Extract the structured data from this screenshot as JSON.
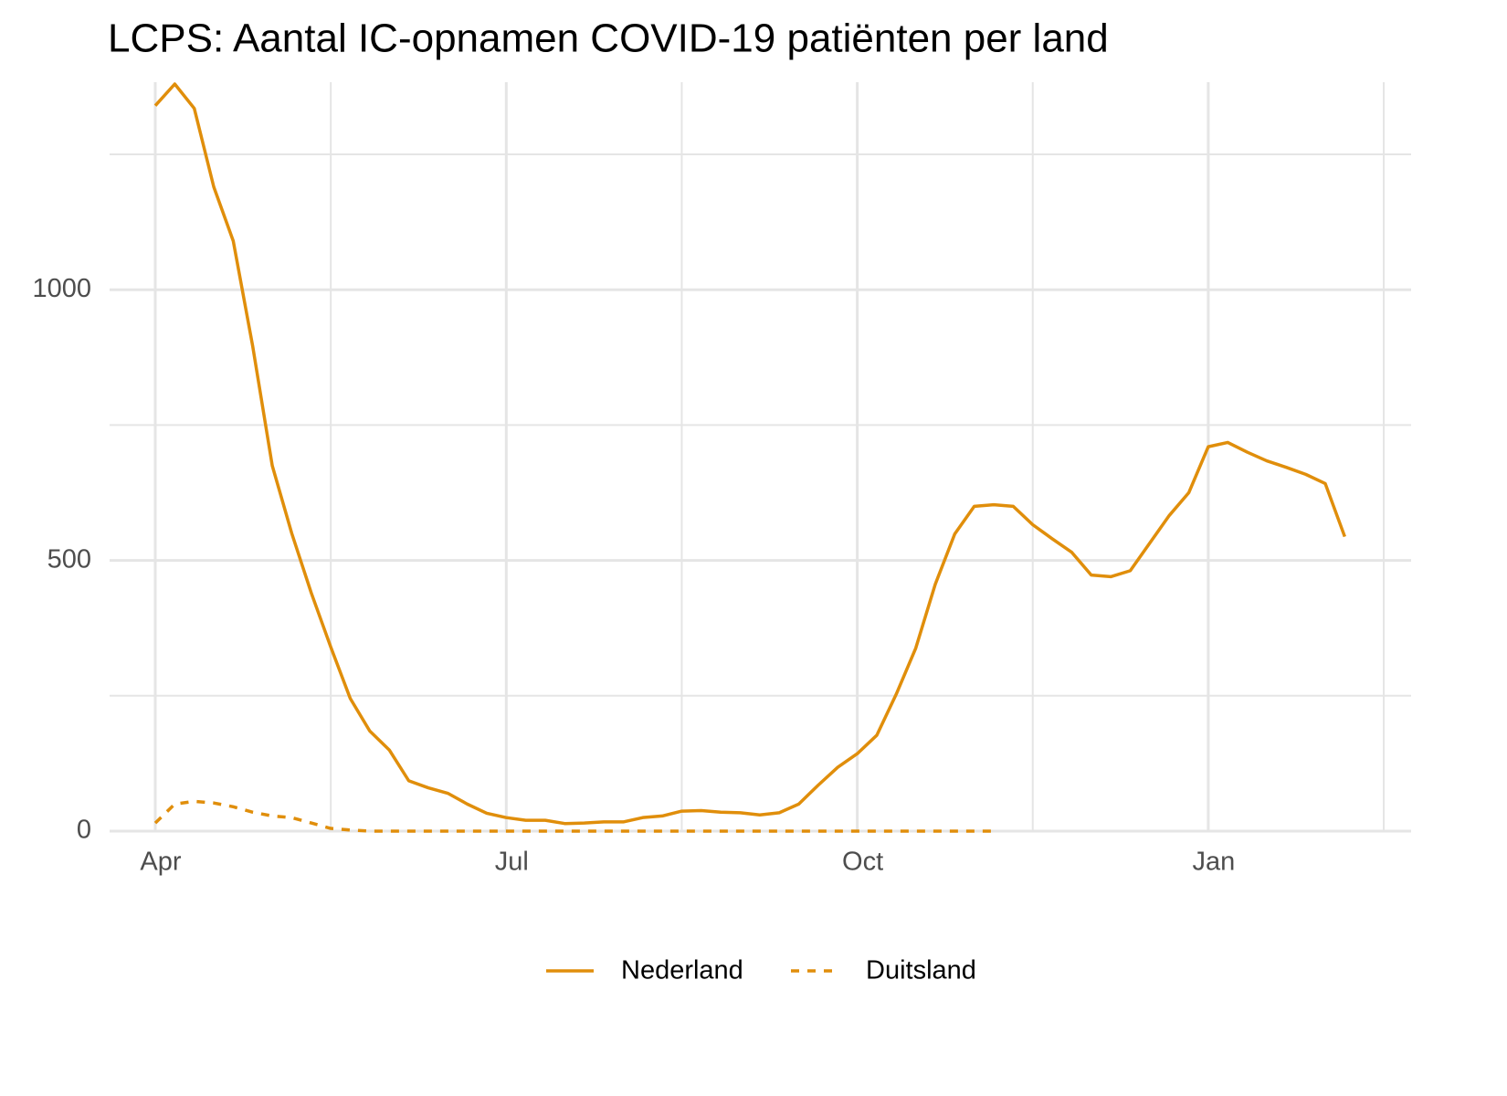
{
  "chart_data": {
    "type": "line",
    "title": "LCPS: Aantal IC-opnamen COVID-19 patiënten per land",
    "categories": [
      "Apr",
      null,
      null,
      null,
      null,
      null,
      null,
      null,
      null,
      null,
      null,
      null,
      null,
      null,
      null,
      null,
      null,
      null,
      "Jul",
      null,
      null,
      null,
      null,
      null,
      null,
      null,
      null,
      null,
      null,
      null,
      null,
      null,
      null,
      null,
      null,
      null,
      "Oct",
      null,
      null,
      null,
      null,
      null,
      null,
      null,
      null,
      null,
      null,
      null,
      null,
      null,
      null,
      null,
      null,
      null,
      "Jan",
      null,
      null,
      null,
      null,
      null,
      null,
      null
    ],
    "series": [
      {
        "name": "Nederland",
        "color": "#E08E0B",
        "dash": false,
        "values": [
          1340,
          1380,
          1335,
          1190,
          1090,
          895,
          675,
          550,
          440,
          340,
          245,
          185,
          150,
          93,
          80,
          70,
          50,
          33,
          25,
          20,
          20,
          14,
          15,
          17,
          17,
          25,
          28,
          37,
          38,
          35,
          34,
          30,
          34,
          50,
          85,
          118,
          143,
          177,
          253,
          338,
          456,
          549,
          600,
          603,
          600,
          566,
          540,
          515,
          473,
          470,
          481,
          532,
          583,
          625,
          710,
          718,
          700,
          684,
          672,
          659,
          642,
          544
        ]
      },
      {
        "name": "Duitsland",
        "color": "#E08E0B",
        "dash": true,
        "values": [
          15,
          50,
          55,
          52,
          45,
          35,
          28,
          25,
          15,
          5,
          2,
          0,
          0,
          0,
          0,
          0,
          0,
          0,
          0,
          0,
          0,
          0,
          0,
          0,
          0,
          0,
          0,
          0,
          0,
          0,
          0,
          0,
          0,
          0,
          0,
          0,
          0,
          0,
          0,
          0,
          0,
          0,
          0,
          0,
          null,
          null,
          null,
          null,
          null,
          null,
          null,
          null,
          null,
          null,
          null,
          null,
          null,
          null,
          null,
          null,
          null,
          null
        ]
      }
    ],
    "ylim": [
      0,
      1380
    ],
    "yticks": [
      0,
      500,
      1000
    ],
    "yminor_ticks": [
      250,
      750,
      1250
    ],
    "grid": true,
    "legend": "bottom"
  }
}
